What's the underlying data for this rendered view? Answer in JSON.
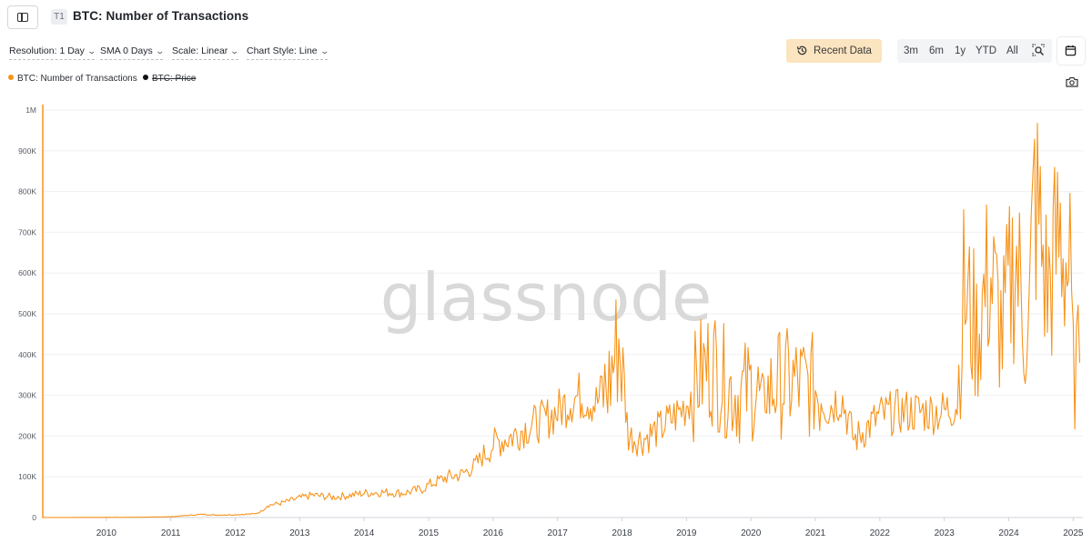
{
  "header": {
    "tier_badge": "T1",
    "title": "BTC: Number of Transactions"
  },
  "controls": {
    "resolution": "Resolution: 1 Day",
    "sma": "SMA 0 Days",
    "scale": "Scale: Linear",
    "chart_style": "Chart Style: Line",
    "recent_data": "Recent Data",
    "ranges": [
      "3m",
      "6m",
      "1y",
      "YTD",
      "All"
    ]
  },
  "legend": [
    {
      "label": "BTC: Number of Transactions",
      "color": "#f7931a",
      "active": true
    },
    {
      "label": "BTC: Price",
      "color": "#111111",
      "active": false
    }
  ],
  "watermark": "glassnode",
  "icons": [
    "sidebar-toggle-icon",
    "history-icon",
    "zoom-search-icon",
    "calendar-icon",
    "camera-icon"
  ],
  "chart_data": {
    "type": "line",
    "series": [
      {
        "name": "BTC: Number of Transactions",
        "color": "#f7931a",
        "x": [
          2009.0,
          2009.5,
          2010.0,
          2010.5,
          2011.0,
          2011.5,
          2011.7,
          2012.0,
          2012.3,
          2012.4,
          2012.5,
          2012.7,
          2013.0,
          2013.2,
          2013.5,
          2013.8,
          2014.0,
          2014.3,
          2014.6,
          2014.9,
          2015.0,
          2015.3,
          2015.5,
          2015.7,
          2015.9,
          2016.0,
          2016.3,
          2016.5,
          2016.8,
          2017.0,
          2017.2,
          2017.4,
          2017.6,
          2017.8,
          2017.95,
          2018.1,
          2018.3,
          2018.6,
          2018.9,
          2019.0,
          2019.2,
          2019.4,
          2019.6,
          2019.8,
          2020.0,
          2020.2,
          2020.4,
          2020.7,
          2021.0,
          2021.2,
          2021.4,
          2021.6,
          2021.8,
          2022.0,
          2022.3,
          2022.6,
          2022.9,
          2023.0,
          2023.2,
          2023.3,
          2023.5,
          2023.7,
          2023.9,
          2024.1,
          2024.3,
          2024.4,
          2024.6,
          2024.8,
          2024.95,
          2025.0,
          2025.1
        ],
        "y": [
          200,
          300,
          500,
          600,
          2000,
          8000,
          6000,
          7000,
          9000,
          15000,
          30000,
          35000,
          48000,
          55000,
          50000,
          55000,
          60000,
          62000,
          60000,
          70000,
          80000,
          100000,
          105000,
          125000,
          160000,
          180000,
          200000,
          220000,
          240000,
          260000,
          290000,
          300000,
          280000,
          330000,
          440000,
          200000,
          190000,
          220000,
          260000,
          280000,
          350000,
          380000,
          330000,
          300000,
          320000,
          290000,
          330000,
          330000,
          320000,
          270000,
          300000,
          190000,
          220000,
          250000,
          260000,
          260000,
          260000,
          260000,
          280000,
          550000,
          450000,
          600000,
          450000,
          650000,
          420000,
          800000,
          550000,
          700000,
          580000,
          350000,
          380000
        ]
      }
    ],
    "x_ticks": [
      "2010",
      "2011",
      "2012",
      "2013",
      "2014",
      "2015",
      "2016",
      "2017",
      "2018",
      "2019",
      "2020",
      "2021",
      "2022",
      "2023",
      "2024",
      "2025"
    ],
    "y_ticks": [
      "0",
      "100K",
      "200K",
      "300K",
      "400K",
      "500K",
      "600K",
      "700K",
      "800K",
      "900K",
      "1M"
    ],
    "xlim": [
      2009.0,
      2025.15
    ],
    "ylim": [
      0,
      1000000
    ],
    "grid": true,
    "legend_position": "top-left"
  }
}
